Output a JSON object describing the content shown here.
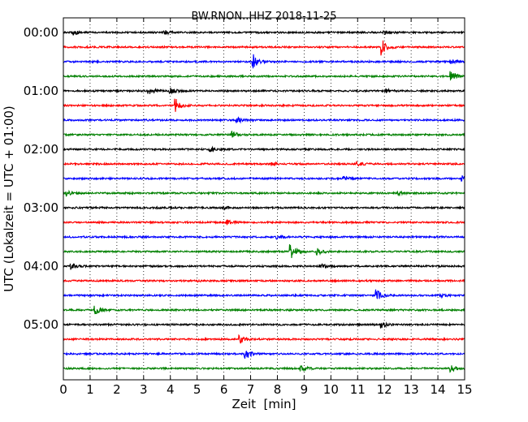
{
  "chart_data": {
    "type": "line",
    "title": "BW.RNON..HHZ 2018-11-25",
    "xlabel": "Zeit  [min]",
    "ylabel": "UTC (Lokalzeit = UTC + 01:00)",
    "xlim": [
      0,
      15
    ],
    "x_ticks": [
      "0",
      "1",
      "2",
      "3",
      "4",
      "5",
      "6",
      "7",
      "8",
      "9",
      "10",
      "11",
      "12",
      "13",
      "14",
      "15"
    ],
    "y_ticks": [
      "00:00",
      "01:00",
      "02:00",
      "03:00",
      "04:00",
      "05:00"
    ],
    "grid": "vertical dotted",
    "trace_colors": [
      "#000000",
      "#ff0000",
      "#0000ff",
      "#008000"
    ],
    "traces": [
      {
        "start": "00:00",
        "events": [
          {
            "minute": 0.4,
            "amp": 0.2
          },
          {
            "minute": 3.8,
            "amp": 0.2
          },
          {
            "minute": 12.0,
            "amp": 0.2
          }
        ]
      },
      {
        "start": "00:15",
        "events": [
          {
            "minute": 11.9,
            "amp": 0.8
          }
        ]
      },
      {
        "start": "00:30",
        "events": [
          {
            "minute": 7.1,
            "amp": 0.7
          },
          {
            "minute": 14.5,
            "amp": 0.2
          }
        ]
      },
      {
        "start": "00:45",
        "events": [
          {
            "minute": 14.5,
            "amp": 0.5
          }
        ]
      },
      {
        "start": "01:00",
        "events": [
          {
            "minute": 3.2,
            "amp": 0.4
          },
          {
            "minute": 4.0,
            "amp": 0.3
          },
          {
            "minute": 12.1,
            "amp": 0.2
          }
        ]
      },
      {
        "start": "01:15",
        "events": [
          {
            "minute": 4.2,
            "amp": 0.8
          }
        ]
      },
      {
        "start": "01:30",
        "events": [
          {
            "minute": 6.5,
            "amp": 0.3
          }
        ]
      },
      {
        "start": "01:45",
        "events": [
          {
            "minute": 6.3,
            "amp": 0.3
          }
        ]
      },
      {
        "start": "02:00",
        "events": [
          {
            "minute": 5.5,
            "amp": 0.2
          }
        ]
      },
      {
        "start": "02:15",
        "events": [
          {
            "minute": 7.8,
            "amp": 0.2
          },
          {
            "minute": 11.0,
            "amp": 0.2
          }
        ]
      },
      {
        "start": "02:30",
        "events": [
          {
            "minute": 10.5,
            "amp": 0.2
          },
          {
            "minute": 14.9,
            "amp": 0.35
          }
        ]
      },
      {
        "start": "02:45",
        "events": [
          {
            "minute": 0.1,
            "amp": 0.25
          },
          {
            "minute": 12.5,
            "amp": 0.15
          }
        ]
      },
      {
        "start": "03:00",
        "events": [
          {
            "minute": 6.0,
            "amp": 0.15
          }
        ]
      },
      {
        "start": "03:15",
        "events": [
          {
            "minute": 6.1,
            "amp": 0.25
          }
        ]
      },
      {
        "start": "03:30",
        "events": [
          {
            "minute": 8.0,
            "amp": 0.2
          }
        ]
      },
      {
        "start": "03:45",
        "events": [
          {
            "minute": 8.5,
            "amp": 0.8
          },
          {
            "minute": 9.5,
            "amp": 0.3
          }
        ]
      },
      {
        "start": "04:00",
        "events": [
          {
            "minute": 0.3,
            "amp": 0.3
          },
          {
            "minute": 9.6,
            "amp": 0.3
          }
        ]
      },
      {
        "start": "04:15",
        "events": [
          {
            "minute": 5.0,
            "amp": 0.1
          }
        ]
      },
      {
        "start": "04:30",
        "events": [
          {
            "minute": 11.7,
            "amp": 0.6
          },
          {
            "minute": 14.1,
            "amp": 0.2
          }
        ]
      },
      {
        "start": "04:45",
        "events": [
          {
            "minute": 1.2,
            "amp": 0.4
          }
        ]
      },
      {
        "start": "05:00",
        "events": [
          {
            "minute": 11.9,
            "amp": 0.3
          }
        ]
      },
      {
        "start": "05:15",
        "events": [
          {
            "minute": 6.6,
            "amp": 0.4
          }
        ]
      },
      {
        "start": "05:30",
        "events": [
          {
            "minute": 6.8,
            "amp": 0.6
          }
        ]
      },
      {
        "start": "05:45",
        "events": [
          {
            "minute": 8.9,
            "amp": 0.3
          },
          {
            "minute": 14.5,
            "amp": 0.3
          }
        ]
      }
    ]
  }
}
